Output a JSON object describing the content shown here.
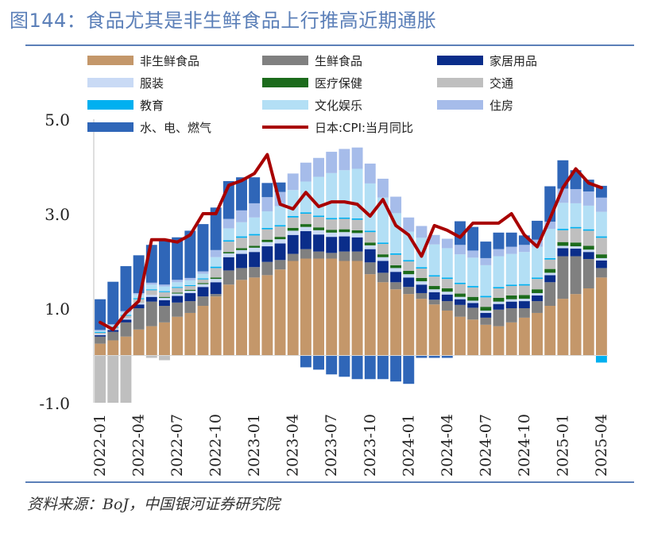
{
  "title": "图144：食品尤其是非生鲜食品上行推高近期通胀",
  "source": "资料来源：BoJ，中国银河证券研究院",
  "colors": {
    "fresh_excl": "#c4976a",
    "fresh": "#808080",
    "household": "#0a2d8a",
    "clothing": "#c9daf5",
    "medical": "#1c6b1c",
    "transport": "#bfbfbf",
    "education": "#00b0f0",
    "culture": "#b3dff5",
    "housing": "#a6bcea",
    "utilities": "#2f66b8",
    "cpi": "#a80000"
  },
  "chart_data": {
    "type": "bar",
    "stacked": true,
    "title": "",
    "xlabel": "",
    "ylabel": "",
    "ylim": [
      -1.0,
      5.0
    ],
    "yticks": [
      "5.0",
      "3.0",
      "1.0",
      "-1.0"
    ],
    "ytick_values": [
      5.0,
      3.0,
      1.0,
      -1.0
    ],
    "x": [
      "2022-01",
      "2022-02",
      "2022-03",
      "2022-04",
      "2022-05",
      "2022-06",
      "2022-07",
      "2022-08",
      "2022-09",
      "2022-10",
      "2022-11",
      "2022-12",
      "2023-01",
      "2023-02",
      "2023-03",
      "2023-04",
      "2023-05",
      "2023-06",
      "2023-07",
      "2023-08",
      "2023-09",
      "2023-10",
      "2023-11",
      "2023-12",
      "2024-01",
      "2024-02",
      "2024-03",
      "2024-04",
      "2024-05",
      "2024-06",
      "2024-07",
      "2024-08",
      "2024-09",
      "2024-10",
      "2024-11",
      "2024-12",
      "2025-01",
      "2025-02",
      "2025-03",
      "2025-04"
    ],
    "xtick_labels": [
      "2022-01",
      "2022-04",
      "2022-07",
      "2022-10",
      "2023-01",
      "2023-04",
      "2023-07",
      "2023-10",
      "2024-01",
      "2024-04",
      "2024-07",
      "2024-10",
      "2025-01",
      "2025-04"
    ],
    "series": [
      {
        "key": "fresh_excl",
        "name": "非生鲜食品",
        "values": [
          0.25,
          0.32,
          0.4,
          0.55,
          0.62,
          0.7,
          0.82,
          0.9,
          1.05,
          1.25,
          1.5,
          1.6,
          1.65,
          1.7,
          1.82,
          2.0,
          2.05,
          2.05,
          2.05,
          2.0,
          2.0,
          1.72,
          1.55,
          1.4,
          1.3,
          1.2,
          1.08,
          0.95,
          0.82,
          0.76,
          0.65,
          0.62,
          0.7,
          0.8,
          0.9,
          1.05,
          1.2,
          1.3,
          1.42,
          1.65
        ]
      },
      {
        "key": "fresh",
        "name": "生鲜食品",
        "values": [
          0.15,
          0.18,
          0.3,
          0.45,
          0.52,
          0.35,
          0.3,
          0.25,
          0.2,
          0.05,
          0.3,
          0.25,
          0.22,
          0.28,
          0.2,
          0.15,
          0.2,
          0.15,
          0.12,
          0.2,
          0.2,
          0.25,
          0.2,
          0.15,
          0.15,
          0.12,
          0.1,
          0.2,
          0.25,
          0.25,
          0.15,
          0.35,
          0.3,
          0.2,
          0.25,
          0.5,
          0.9,
          0.8,
          0.62,
          0.2
        ]
      },
      {
        "key": "household",
        "name": "家居用品",
        "values": [
          0.03,
          0.04,
          0.06,
          0.08,
          0.1,
          0.12,
          0.14,
          0.17,
          0.2,
          0.25,
          0.28,
          0.3,
          0.32,
          0.33,
          0.35,
          0.4,
          0.38,
          0.36,
          0.34,
          0.32,
          0.3,
          0.28,
          0.25,
          0.22,
          0.2,
          0.18,
          0.16,
          0.14,
          0.12,
          0.1,
          0.1,
          0.12,
          0.14,
          0.15,
          0.12,
          0.15,
          0.17,
          0.16,
          0.15,
          0.16
        ]
      },
      {
        "key": "clothing",
        "name": "服装",
        "values": [
          0.02,
          0.02,
          0.03,
          0.03,
          0.04,
          0.05,
          0.05,
          0.05,
          0.06,
          0.07,
          0.08,
          0.08,
          0.09,
          0.09,
          0.09,
          0.09,
          0.09,
          0.09,
          0.09,
          0.09,
          0.09,
          0.08,
          0.08,
          0.08,
          0.07,
          0.07,
          0.06,
          0.06,
          0.05,
          0.05,
          0.05,
          0.05,
          0.05,
          0.05,
          0.05,
          0.05,
          0.05,
          0.05,
          0.05,
          0.05
        ]
      },
      {
        "key": "medical",
        "name": "医疗保健",
        "values": [
          0.0,
          0.0,
          0.0,
          0.0,
          0.0,
          0.02,
          0.02,
          0.02,
          0.02,
          0.03,
          0.03,
          0.04,
          0.04,
          0.05,
          0.05,
          0.06,
          0.06,
          0.06,
          0.06,
          0.06,
          0.06,
          0.06,
          0.06,
          0.06,
          0.07,
          0.07,
          0.07,
          0.07,
          0.07,
          0.08,
          0.08,
          0.08,
          0.08,
          0.08,
          0.08,
          0.08,
          0.08,
          0.08,
          0.08,
          0.08
        ]
      },
      {
        "key": "transport",
        "name": "交通",
        "values": [
          0.03,
          0.03,
          0.05,
          0.08,
          0.1,
          0.1,
          0.1,
          0.08,
          0.08,
          0.2,
          0.22,
          0.22,
          0.22,
          0.22,
          0.22,
          0.22,
          0.22,
          0.22,
          0.22,
          0.22,
          0.22,
          0.22,
          0.22,
          0.22,
          0.2,
          0.2,
          0.2,
          0.2,
          0.2,
          0.2,
          0.2,
          0.2,
          0.2,
          0.2,
          0.22,
          0.2,
          0.25,
          0.3,
          0.32,
          0.35
        ]
      },
      {
        "key": "education",
        "name": "教育",
        "values": [
          0.02,
          0.02,
          0.02,
          0.02,
          0.02,
          0.02,
          0.02,
          0.02,
          0.02,
          0.03,
          0.03,
          0.03,
          0.03,
          0.03,
          0.03,
          0.03,
          0.03,
          0.03,
          0.03,
          0.03,
          0.03,
          0.03,
          0.03,
          0.03,
          0.03,
          0.03,
          0.03,
          0.03,
          0.03,
          0.03,
          0.03,
          0.03,
          0.03,
          0.03,
          0.03,
          0.03,
          0.03,
          0.03,
          0.03,
          0.03
        ]
      },
      {
        "key": "culture",
        "name": "文化娱乐",
        "values": [
          0.02,
          0.03,
          0.05,
          0.08,
          0.1,
          0.1,
          0.1,
          0.1,
          0.1,
          0.2,
          0.25,
          0.3,
          0.35,
          0.35,
          0.4,
          0.55,
          0.65,
          0.82,
          0.95,
          1.0,
          1.05,
          1.0,
          0.95,
          0.85,
          0.6,
          0.62,
          0.65,
          0.62,
          0.6,
          0.6,
          0.65,
          0.65,
          0.65,
          0.68,
          0.65,
          0.62,
          0.55,
          0.5,
          0.5,
          0.52
        ]
      },
      {
        "key": "housing",
        "name": "住房",
        "values": [
          0.02,
          0.02,
          0.03,
          0.03,
          0.04,
          0.04,
          0.05,
          0.05,
          0.05,
          0.15,
          0.2,
          0.25,
          0.3,
          0.3,
          0.3,
          0.35,
          0.4,
          0.4,
          0.45,
          0.45,
          0.45,
          0.42,
          0.4,
          0.35,
          0.3,
          0.25,
          0.2,
          0.2,
          0.2,
          0.15,
          0.15,
          0.15,
          0.15,
          0.15,
          0.15,
          0.15,
          0.3,
          0.3,
          0.3,
          0.3
        ]
      },
      {
        "key": "utilities",
        "name": "水、电、燃气",
        "values": [
          0.65,
          0.9,
          0.95,
          0.8,
          0.8,
          0.95,
          0.9,
          1.0,
          1.0,
          0.9,
          0.8,
          0.7,
          0.55,
          0.3,
          0.2,
          0.0,
          -0.25,
          -0.3,
          -0.4,
          -0.45,
          -0.5,
          -0.5,
          -0.5,
          -0.55,
          -0.6,
          -0.05,
          -0.05,
          -0.05,
          0.5,
          0.5,
          0.35,
          0.35,
          0.3,
          0.2,
          0.4,
          0.75,
          0.6,
          0.4,
          0.25,
          0.25
        ]
      }
    ],
    "negatives": [
      {
        "key": "transport",
        "values": [
          -1.0,
          -1.0,
          -1.0,
          0,
          -0.05,
          -0.1,
          0,
          0,
          0,
          0,
          0,
          0,
          0,
          0,
          0,
          0,
          0,
          0,
          0,
          0,
          0,
          0,
          0,
          0,
          0,
          0,
          0,
          0,
          0,
          0,
          0,
          0,
          0,
          0,
          0,
          0,
          0,
          0,
          0,
          0
        ]
      },
      {
        "key": "education",
        "values": [
          0,
          0,
          0,
          0,
          0,
          0,
          0,
          0,
          0,
          0,
          0,
          0,
          0,
          0,
          0,
          0,
          0,
          0,
          0,
          0,
          0,
          0,
          0,
          0,
          0,
          0,
          0,
          0,
          0,
          0,
          0,
          0,
          0,
          0,
          0,
          0,
          0,
          0,
          0,
          -0.15
        ]
      }
    ],
    "line": {
      "key": "cpi",
      "name": "日本:CPI:当月同比",
      "values": [
        0.7,
        0.55,
        0.9,
        1.15,
        2.45,
        2.45,
        2.4,
        2.55,
        3.0,
        3.0,
        3.6,
        3.7,
        3.85,
        4.25,
        3.2,
        3.1,
        3.45,
        3.15,
        3.25,
        3.25,
        3.2,
        2.95,
        3.3,
        2.75,
        2.55,
        2.1,
        2.75,
        2.65,
        2.5,
        2.8,
        2.8,
        2.8,
        3.0,
        2.55,
        2.3,
        2.9,
        3.55,
        3.95,
        3.65,
        3.55
      ]
    },
    "legend": {
      "position": "top",
      "columns": 3
    }
  }
}
